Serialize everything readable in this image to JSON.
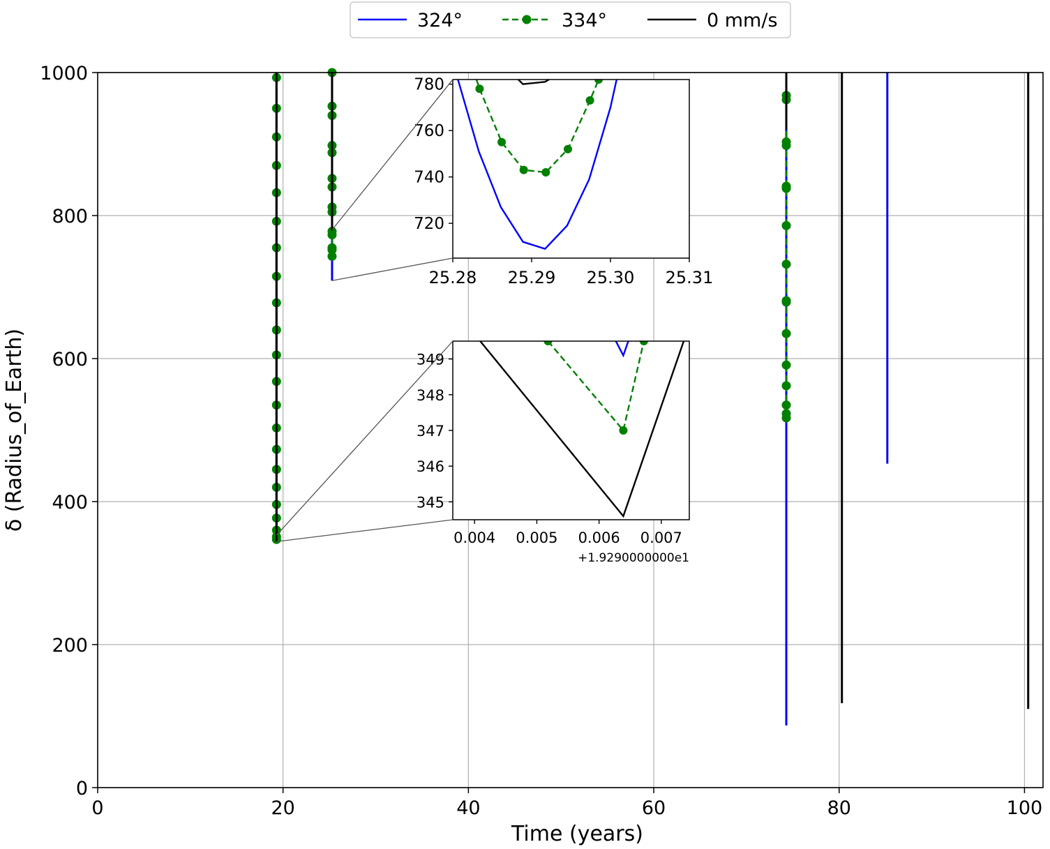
{
  "chart_data": [
    {
      "type": "line",
      "panel": "main",
      "xlabel": "Time (years)",
      "ylabel": "δ (Radius_of_Earth)",
      "xlim": [
        0,
        102
      ],
      "ylim": [
        0,
        1000
      ],
      "xticks": [
        0,
        20,
        40,
        60,
        80,
        100
      ],
      "yticks": [
        0,
        200,
        400,
        600,
        800,
        1000
      ],
      "grid": true,
      "legend": {
        "placement": "top-center, outside",
        "entries": [
          "324°",
          "334°",
          "0 mm/s"
        ]
      },
      "series": [
        {
          "name": "324°",
          "color": "#0000ff",
          "style": "solid",
          "segments": [
            {
              "x": [
                19.295,
                19.295
              ],
              "y": [
                1000,
                349
              ]
            },
            {
              "x": [
                25.29,
                25.29
              ],
              "y": [
                1000,
                709
              ]
            },
            {
              "x": [
                74.3,
                74.3
              ],
              "y": [
                1000,
                87
              ]
            },
            {
              "x": [
                85.2,
                85.2
              ],
              "y": [
                1000,
                453
              ]
            }
          ]
        },
        {
          "name": "334°",
          "color": "#008000",
          "style": "dashed",
          "marker": "circle",
          "segments": [
            {
              "x": [
                19.295,
                19.295
              ],
              "y": [
                1000,
                347
              ]
            },
            {
              "x": [
                25.29,
                25.29
              ],
              "y": [
                1000,
                741
              ]
            },
            {
              "x": [
                74.3,
                74.3
              ],
              "y": [
                1000,
                515
              ]
            }
          ],
          "marker_points": [
            {
              "x": 19.295,
              "y": [
                993,
                950,
                910,
                870,
                832,
                792,
                755,
                715,
                678,
                640,
                605,
                568,
                535,
                503,
                473,
                445,
                420,
                396,
                377,
                360,
                351,
                347
              ]
            },
            {
              "x": 25.29,
              "y": [
                1000,
                953,
                940,
                898,
                888,
                852,
                840,
                812,
                805,
                778,
                773,
                755,
                752,
                743
              ]
            },
            {
              "x": 74.3,
              "y": [
                968,
                962,
                903,
                898,
                841,
                838,
                786,
                732,
                681,
                679,
                635,
                591,
                562,
                535,
                523,
                517
              ]
            }
          ]
        },
        {
          "name": "0 mm/s",
          "color": "#000000",
          "style": "solid",
          "segments": [
            {
              "x": [
                19.295,
                19.295
              ],
              "y": [
                1000,
                344
              ]
            },
            {
              "x": [
                25.29,
                25.29
              ],
              "y": [
                1000,
                779
              ]
            },
            {
              "x": [
                74.3,
                74.3
              ],
              "y": [
                1000,
                920
              ]
            },
            {
              "x": [
                80.3,
                80.3
              ],
              "y": [
                1000,
                118
              ]
            },
            {
              "x": [
                100.4,
                100.4
              ],
              "y": [
                1000,
                110
              ]
            }
          ]
        }
      ]
    },
    {
      "type": "line",
      "panel": "inset-upper",
      "xlim": [
        25.28,
        25.31
      ],
      "ylim": [
        705,
        782
      ],
      "xticks": [
        "25.28",
        "25.29",
        "25.30",
        "25.31"
      ],
      "yticks": [
        720,
        740,
        760,
        780
      ],
      "series": [
        {
          "name": "324°",
          "color": "#0000ff",
          "style": "solid",
          "x": [
            25.2804,
            25.2833,
            25.2861,
            25.2889,
            25.2917,
            25.2945,
            25.2973,
            25.3,
            25.3013
          ],
          "y": [
            785,
            751,
            727,
            712,
            709,
            719,
            739,
            770,
            790
          ]
        },
        {
          "name": "334°",
          "color": "#008000",
          "style": "dashed",
          "marker": "circle",
          "x": [
            25.2822,
            25.2834,
            25.2862,
            25.289,
            25.2918,
            25.2946,
            25.2974,
            25.2985
          ],
          "y": [
            790,
            778,
            755,
            743,
            742,
            752,
            773,
            782
          ]
        },
        {
          "name": "0 mm/s",
          "color": "#000000",
          "style": "solid",
          "x": [
            25.2883,
            25.2889,
            25.2917,
            25.2922
          ],
          "y": [
            782,
            780,
            781,
            782
          ]
        }
      ]
    },
    {
      "type": "line",
      "panel": "inset-lower",
      "xlim": [
        0.00365,
        0.00745
      ],
      "ylim": [
        344.5,
        349.5
      ],
      "xticks": [
        "0.004",
        "0.005",
        "0.006",
        "0.007"
      ],
      "yticks": [
        "345",
        "346",
        "347",
        "348",
        "349"
      ],
      "x_offset_label": "+1.9290000000e1",
      "series": [
        {
          "name": "324°",
          "color": "#0000ff",
          "style": "solid",
          "x": [
            0.00627,
            0.00639,
            0.00647
          ],
          "y": [
            349.5,
            349.1,
            349.5
          ]
        },
        {
          "name": "334°",
          "color": "#008000",
          "style": "dashed",
          "marker": "circle",
          "x": [
            0.00518,
            0.00639,
            0.00672
          ],
          "y": [
            349.5,
            347.0,
            349.5
          ]
        },
        {
          "name": "0 mm/s",
          "color": "#000000",
          "style": "solid",
          "x": [
            0.00409,
            0.00639,
            0.00736
          ],
          "y": [
            349.5,
            344.6,
            349.5
          ]
        }
      ]
    }
  ]
}
